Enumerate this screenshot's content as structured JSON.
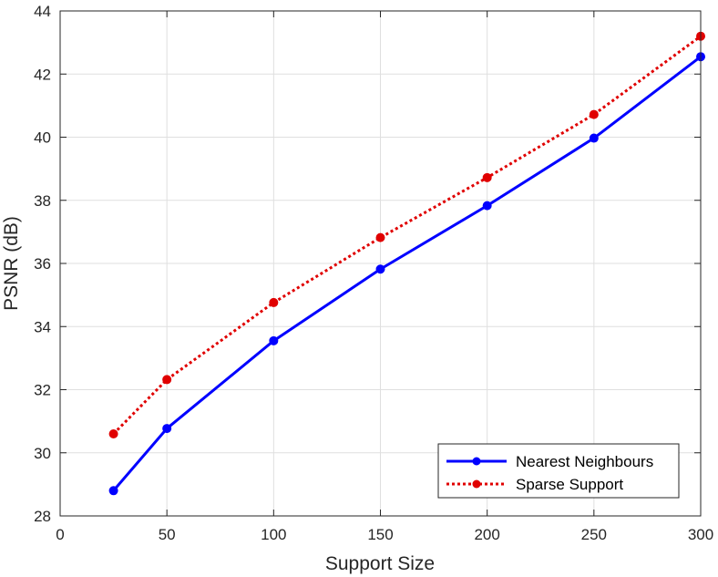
{
  "chart_data": {
    "type": "line",
    "title": "",
    "xlabel": "Support Size",
    "ylabel": "PSNR (dB)",
    "xlim": [
      0,
      300
    ],
    "ylim": [
      28,
      44
    ],
    "xticks": [
      0,
      50,
      100,
      150,
      200,
      250,
      300
    ],
    "yticks": [
      28,
      30,
      32,
      34,
      36,
      38,
      40,
      42,
      44
    ],
    "grid": true,
    "legend_position": "bottom-right",
    "x": [
      25,
      50,
      100,
      150,
      200,
      250,
      300
    ],
    "series": [
      {
        "name": "Nearest Neighbours",
        "color": "#0000ff",
        "line_style": "solid",
        "marker": "circle",
        "values": [
          28.8,
          30.77,
          33.55,
          35.82,
          37.83,
          39.97,
          42.55
        ]
      },
      {
        "name": "Sparse Support",
        "color": "#e00000",
        "line_style": "dotted",
        "marker": "circle",
        "values": [
          30.6,
          32.32,
          34.76,
          36.82,
          38.72,
          40.72,
          43.2
        ]
      }
    ]
  }
}
